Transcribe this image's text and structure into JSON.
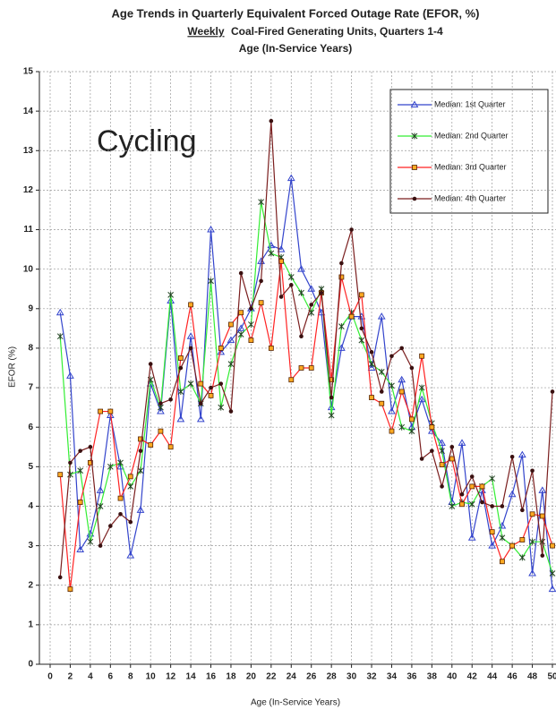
{
  "chart_data": {
    "type": "line",
    "title": "Age Trends in Quarterly Equivalent Forced Outage Rate (EFOR, %)",
    "subtitle_underlined": "Weekly",
    "subtitle": "Coal-Fired Generating Units, Quarters 1-4",
    "subtitle2": "Age (In-Service Years)",
    "annotation": "Cycling",
    "x_label": "Age (In-Service Years)",
    "y_label": "EFOR (%)",
    "xlim": [
      0,
      50
    ],
    "ylim": [
      0,
      15
    ],
    "xticks": [
      0,
      2,
      4,
      6,
      8,
      10,
      12,
      14,
      16,
      18,
      20,
      22,
      24,
      26,
      28,
      30,
      32,
      34,
      36,
      38,
      40,
      42,
      44,
      46,
      48,
      50
    ],
    "yticks": [
      0,
      1,
      2,
      3,
      4,
      5,
      6,
      7,
      8,
      9,
      10,
      11,
      12,
      13,
      14,
      15
    ],
    "grid": true,
    "legend": "upper right",
    "x": [
      1,
      2,
      3,
      4,
      5,
      6,
      7,
      8,
      9,
      10,
      11,
      12,
      13,
      14,
      15,
      16,
      17,
      18,
      19,
      20,
      21,
      22,
      23,
      24,
      25,
      26,
      27,
      28,
      29,
      30,
      31,
      32,
      33,
      34,
      35,
      36,
      37,
      38,
      39,
      40,
      41,
      42,
      43,
      44,
      45,
      46,
      47,
      48,
      49,
      50
    ],
    "series": [
      {
        "name": "Median: 1st Quarter",
        "color": "#3344cc",
        "marker": "triangle",
        "values": [
          8.9,
          7.3,
          2.9,
          3.3,
          4.4,
          6.3,
          5.0,
          2.75,
          3.9,
          7.1,
          6.4,
          9.2,
          6.2,
          8.3,
          6.2,
          11.0,
          7.9,
          8.2,
          8.5,
          9.0,
          10.2,
          10.6,
          10.5,
          12.3,
          10.0,
          9.5,
          8.9,
          6.5,
          8.0,
          8.8,
          8.8,
          7.5,
          8.8,
          6.4,
          7.2,
          6.0,
          6.7,
          5.9,
          5.6,
          4.1,
          5.6,
          3.2,
          4.4,
          3.0,
          3.5,
          4.3,
          5.3,
          2.3,
          4.4,
          1.9
        ]
      },
      {
        "name": "Median: 2nd Quarter",
        "color": "#33ee33",
        "marker": "asterisk",
        "values": [
          8.3,
          4.8,
          4.9,
          3.1,
          4.0,
          5.0,
          5.1,
          4.5,
          4.9,
          7.2,
          6.5,
          9.35,
          6.9,
          7.1,
          6.6,
          9.7,
          6.5,
          7.6,
          8.35,
          8.6,
          11.7,
          10.4,
          10.3,
          9.8,
          9.4,
          8.9,
          9.5,
          6.3,
          8.55,
          8.9,
          8.2,
          7.6,
          7.4,
          7.05,
          6.0,
          5.9,
          7.0,
          6.1,
          5.4,
          4.0,
          4.1,
          4.05,
          4.5,
          4.7,
          3.2,
          3.0,
          2.7,
          3.1,
          3.1,
          2.3
        ]
      },
      {
        "name": "Median: 3rd Quarter",
        "color": "#ff2222",
        "marker": "square",
        "values": [
          4.8,
          1.9,
          4.1,
          5.1,
          6.4,
          6.4,
          4.2,
          4.75,
          5.7,
          5.55,
          5.9,
          5.5,
          7.75,
          9.1,
          7.1,
          6.8,
          8.0,
          8.6,
          8.9,
          8.2,
          9.15,
          8.0,
          10.2,
          7.2,
          7.5,
          7.5,
          9.4,
          7.2,
          9.8,
          8.8,
          9.35,
          6.75,
          6.6,
          5.9,
          6.9,
          6.2,
          7.8,
          6.0,
          5.05,
          5.2,
          4.05,
          4.5,
          4.5,
          3.35,
          2.6,
          3.0,
          3.15,
          3.8,
          3.75,
          3.0
        ]
      },
      {
        "name": "Median: 4th Quarter",
        "color": "#7a1e1e",
        "marker": "circle",
        "values": [
          2.2,
          5.1,
          5.4,
          5.5,
          3.0,
          3.5,
          3.8,
          3.6,
          5.4,
          7.6,
          6.6,
          6.7,
          7.5,
          8.0,
          6.6,
          7.0,
          7.1,
          6.4,
          9.9,
          9.0,
          9.7,
          13.75,
          9.3,
          9.6,
          8.3,
          9.1,
          9.4,
          6.75,
          10.15,
          11.0,
          8.5,
          7.9,
          6.9,
          7.8,
          8.0,
          7.5,
          5.2,
          5.4,
          4.5,
          5.5,
          4.3,
          4.75,
          4.1,
          4.0,
          4.0,
          5.25,
          3.9,
          4.9,
          2.75,
          6.9
        ]
      }
    ]
  }
}
